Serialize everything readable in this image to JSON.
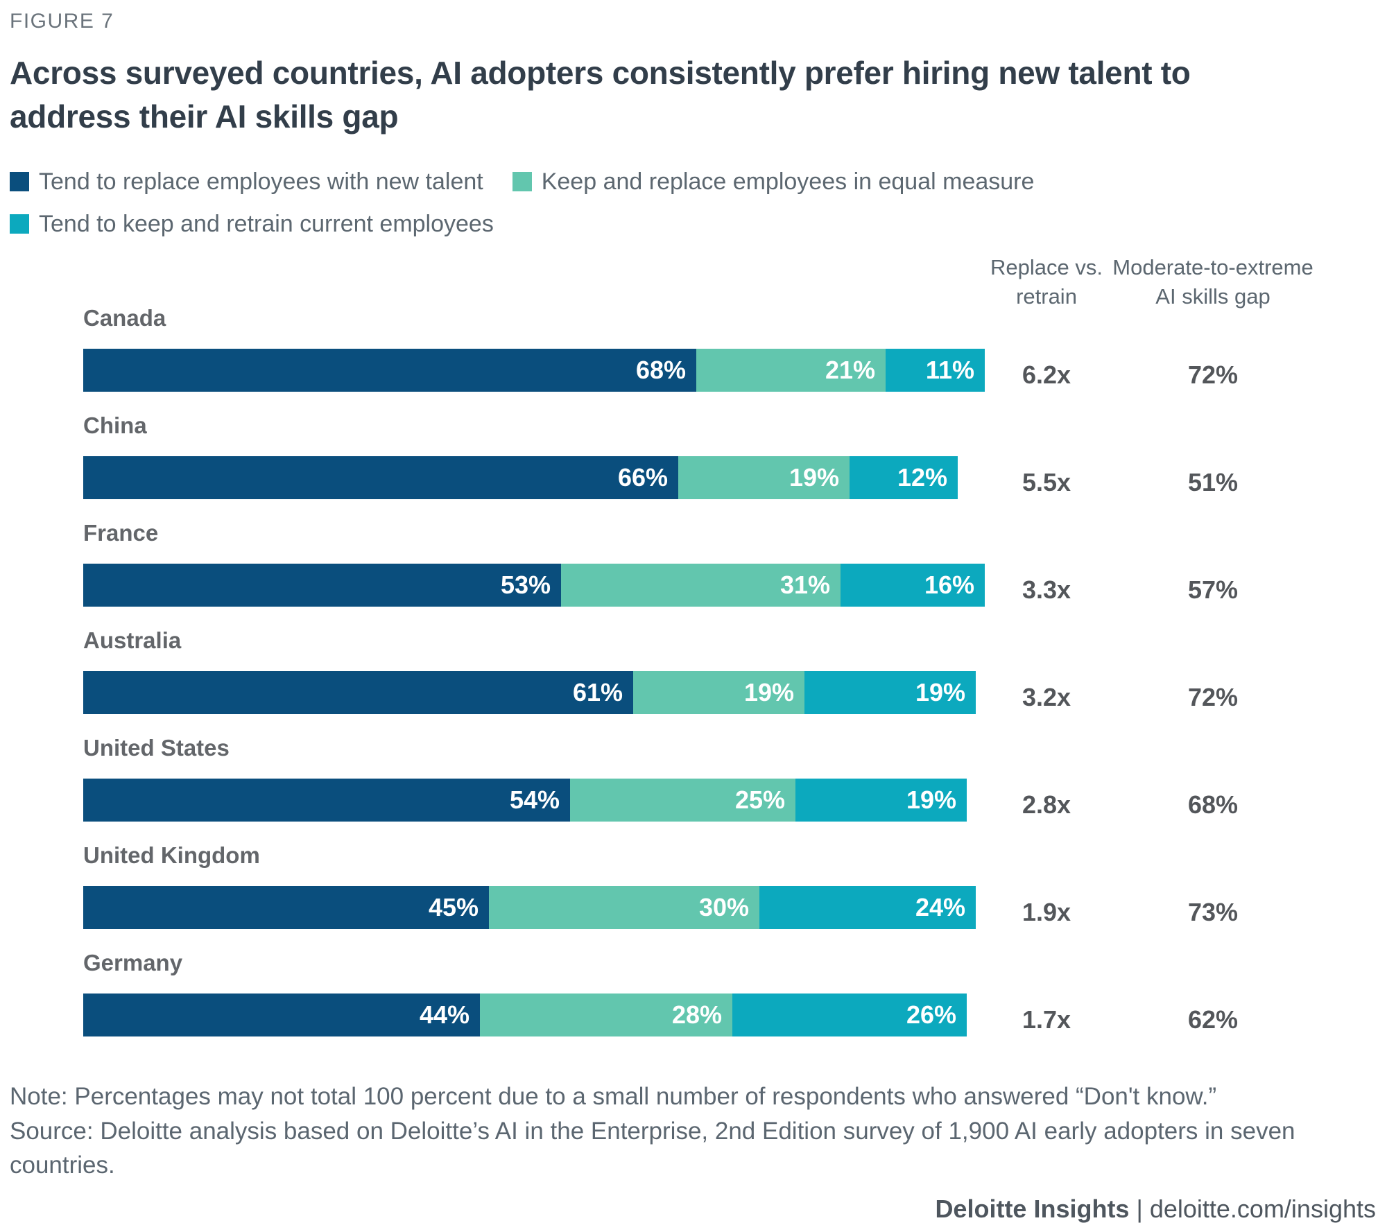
{
  "figure": {
    "label": "FIGURE 7",
    "title": "Across surveyed countries, AI adopters consistently prefer hiring new talent to address their AI skills gap"
  },
  "legend": [
    {
      "label": "Tend to replace employees with new talent",
      "color": "#0a4e7d"
    },
    {
      "label": "Keep and replace employees in equal measure",
      "color": "#62c6ae"
    },
    {
      "label": "Tend to keep and retrain current employees",
      "color": "#0ca9be"
    }
  ],
  "columns": {
    "replace_vs_retrain": "Replace vs.\nretrain",
    "skills_gap": "Moderate-to-extreme\nAI skills gap"
  },
  "chart_data": {
    "type": "bar",
    "orientation": "horizontal",
    "stacked": true,
    "unit": "%",
    "xlim": [
      0,
      100
    ],
    "grid": false,
    "legend_position": "top",
    "categories": [
      "Canada",
      "China",
      "France",
      "Australia",
      "United States",
      "United Kingdom",
      "Germany"
    ],
    "series": [
      {
        "name": "Tend to replace employees with new talent",
        "color": "#0a4e7d",
        "values": [
          68,
          66,
          53,
          61,
          54,
          45,
          44
        ]
      },
      {
        "name": "Keep and replace employees in equal measure",
        "color": "#62c6ae",
        "values": [
          21,
          19,
          31,
          19,
          25,
          30,
          28
        ]
      },
      {
        "name": "Tend to keep and retrain current employees",
        "color": "#0ca9be",
        "values": [
          11,
          12,
          16,
          19,
          19,
          24,
          26
        ]
      }
    ],
    "extra_columns": [
      {
        "header": "Replace vs.\nretrain",
        "values": [
          "6.2x",
          "5.5x",
          "3.3x",
          "3.2x",
          "2.8x",
          "1.9x",
          "1.7x"
        ]
      },
      {
        "header": "Moderate-to-extreme\nAI skills gap",
        "values": [
          "72%",
          "51%",
          "57%",
          "72%",
          "68%",
          "73%",
          "62%"
        ]
      }
    ]
  },
  "note": "Note: Percentages may not total 100 percent due to a small number of respondents who answered “Don't know.”",
  "source": "Source: Deloitte analysis based on Deloitte’s AI in the Enterprise, 2nd Edition survey of 1,900 AI early adopters in seven countries.",
  "footer": {
    "brand": "Deloitte Insights",
    "separator": " | ",
    "url": "deloitte.com/insights"
  }
}
